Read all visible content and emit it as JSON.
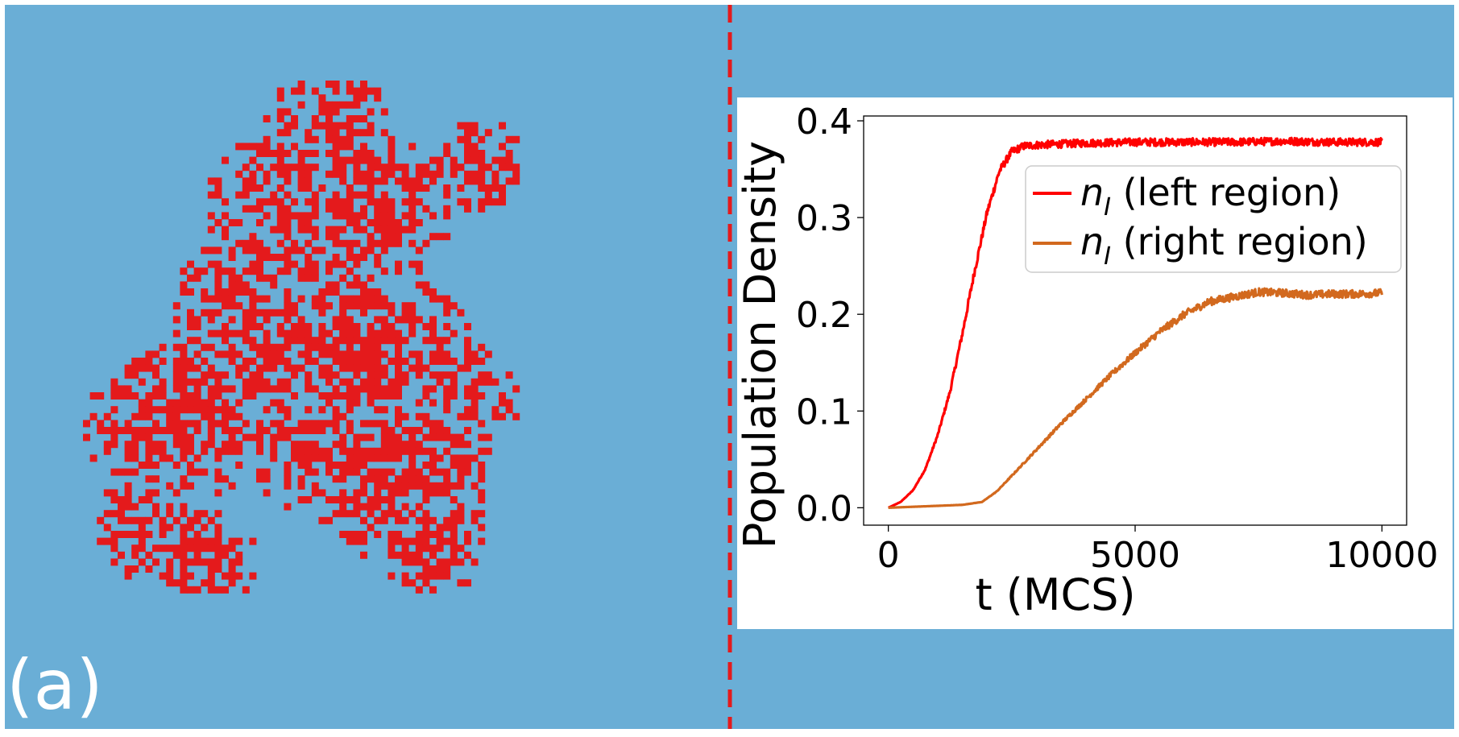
{
  "panel_label": "(a)",
  "colors": {
    "background": "#6aaed6",
    "infected": "#e41a1c",
    "left_series": "#ff0000",
    "right_series": "#d2691e",
    "divider": "#e41a1c"
  },
  "lattice": {
    "description_hidden": true,
    "seed": 7
  },
  "chart_data": {
    "type": "line",
    "xlabel": "t (MCS)",
    "ylabel": "Population Density",
    "xlim": [
      -500,
      10500
    ],
    "ylim": [
      -0.018,
      0.405
    ],
    "xticks": [
      0,
      5000,
      10000
    ],
    "xtick_labels": [
      "0",
      "5000",
      "10000"
    ],
    "yticks": [
      0.0,
      0.1,
      0.2,
      0.3,
      0.4
    ],
    "ytick_labels": [
      "0.0",
      "0.1",
      "0.2",
      "0.3",
      "0.4"
    ],
    "legend_position": "upper-right",
    "series": [
      {
        "name": "n_I (left region)",
        "legend_main": "n",
        "legend_sub": "I",
        "legend_rest": " (left region)",
        "color": "#ff0000",
        "x": [
          0,
          250,
          500,
          750,
          1000,
          1250,
          1500,
          1750,
          2000,
          2250,
          2500,
          2750,
          3000,
          3500,
          4000,
          5000,
          6000,
          7000,
          8000,
          9000,
          10000
        ],
        "y": [
          0.0,
          0.006,
          0.018,
          0.04,
          0.075,
          0.12,
          0.18,
          0.245,
          0.305,
          0.348,
          0.368,
          0.374,
          0.375,
          0.376,
          0.377,
          0.378,
          0.378,
          0.378,
          0.379,
          0.378,
          0.378
        ]
      },
      {
        "name": "n_I (right region)",
        "legend_main": "n",
        "legend_sub": "I",
        "legend_rest": " (right region)",
        "color": "#d2691e",
        "x": [
          0,
          500,
          1000,
          1500,
          1900,
          2200,
          2500,
          3000,
          3500,
          4000,
          4500,
          5000,
          5500,
          6000,
          6500,
          7000,
          7500,
          8000,
          8500,
          9000,
          9500,
          10000
        ],
        "y": [
          0.0,
          0.001,
          0.002,
          0.003,
          0.006,
          0.017,
          0.033,
          0.06,
          0.087,
          0.112,
          0.137,
          0.16,
          0.182,
          0.2,
          0.213,
          0.218,
          0.223,
          0.222,
          0.22,
          0.221,
          0.221,
          0.222
        ]
      }
    ]
  }
}
